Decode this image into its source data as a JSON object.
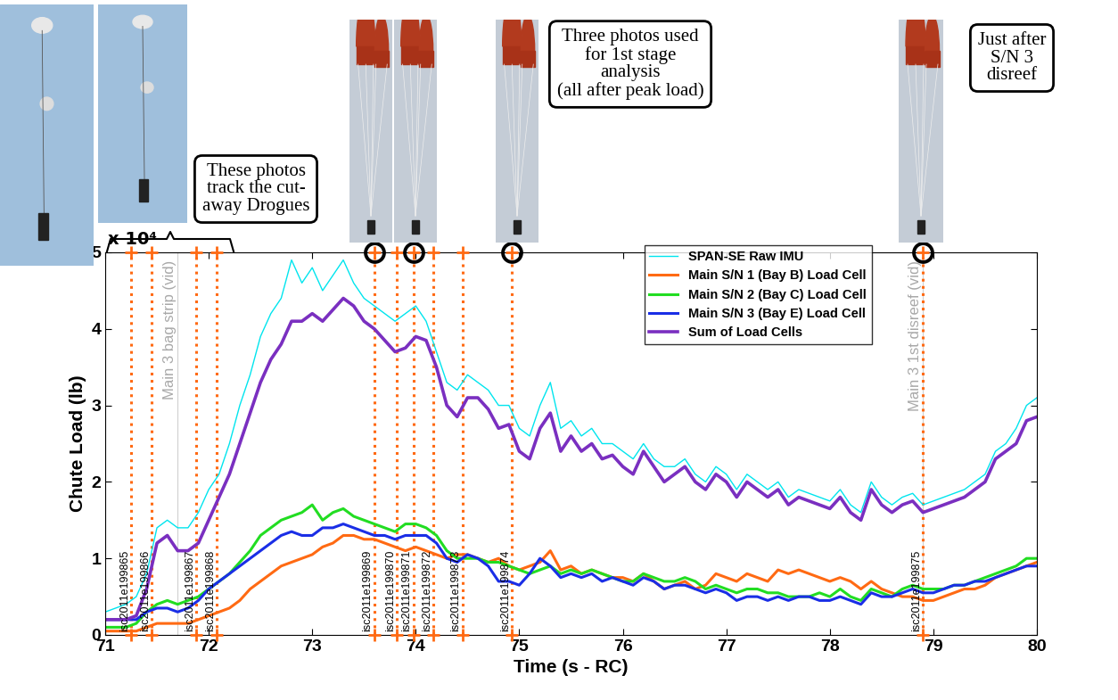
{
  "chart_data": {
    "type": "line",
    "x_label": "Time (s - RC)",
    "y_label": "Chute Load (lb)",
    "y_multiplier": "x 10⁴",
    "xlim": [
      71,
      80
    ],
    "xticks": [
      71,
      72,
      73,
      74,
      75,
      76,
      77,
      78,
      79,
      80
    ],
    "ylim": [
      0,
      5
    ],
    "yticks": [
      0,
      1,
      2,
      3,
      4,
      5
    ],
    "legend": "upper right",
    "x": [
      71.0,
      71.1,
      71.2,
      71.3,
      71.4,
      71.5,
      71.6,
      71.7,
      71.8,
      71.9,
      72.0,
      72.1,
      72.2,
      72.3,
      72.4,
      72.5,
      72.6,
      72.7,
      72.8,
      72.9,
      73.0,
      73.1,
      73.2,
      73.3,
      73.4,
      73.5,
      73.6,
      73.7,
      73.8,
      73.9,
      74.0,
      74.1,
      74.2,
      74.3,
      74.4,
      74.5,
      74.6,
      74.7,
      74.8,
      74.9,
      75.0,
      75.1,
      75.2,
      75.3,
      75.4,
      75.5,
      75.6,
      75.7,
      75.8,
      75.9,
      76.0,
      76.1,
      76.2,
      76.3,
      76.4,
      76.5,
      76.6,
      76.7,
      76.8,
      76.9,
      77.0,
      77.1,
      77.2,
      77.3,
      77.4,
      77.5,
      77.6,
      77.7,
      77.8,
      77.9,
      78.0,
      78.1,
      78.2,
      78.3,
      78.4,
      78.5,
      78.6,
      78.7,
      78.8,
      78.9,
      79.0,
      79.1,
      79.2,
      79.3,
      79.4,
      79.5,
      79.6,
      79.7,
      79.8,
      79.9,
      80.0
    ],
    "series": [
      {
        "name": "SPAN-SE Raw IMU",
        "color": "#00e5ee",
        "values": [
          0.3,
          0.35,
          0.4,
          0.5,
          0.8,
          1.4,
          1.5,
          1.4,
          1.4,
          1.6,
          1.9,
          2.1,
          2.5,
          3.0,
          3.4,
          3.9,
          4.2,
          4.4,
          4.9,
          4.6,
          4.8,
          4.5,
          4.7,
          4.9,
          4.6,
          4.4,
          4.3,
          4.2,
          4.1,
          4.2,
          4.3,
          4.1,
          3.7,
          3.3,
          3.2,
          3.4,
          3.3,
          3.2,
          3.0,
          3.0,
          2.7,
          2.6,
          3.0,
          3.3,
          2.7,
          2.8,
          2.6,
          2.7,
          2.5,
          2.5,
          2.4,
          2.3,
          2.5,
          2.3,
          2.2,
          2.2,
          2.3,
          2.1,
          2.0,
          2.2,
          2.1,
          1.9,
          2.1,
          2.0,
          1.9,
          2.0,
          1.8,
          1.9,
          1.85,
          1.8,
          1.75,
          1.9,
          1.7,
          1.6,
          2.0,
          1.8,
          1.7,
          1.8,
          1.85,
          1.7,
          1.75,
          1.8,
          1.85,
          1.9,
          2.0,
          2.1,
          2.4,
          2.5,
          2.7,
          3.0,
          3.1
        ]
      },
      {
        "name": "Main S/N 1 (Bay B) Load Cell",
        "color": "#ff6a13",
        "values": [
          0.05,
          0.05,
          0.05,
          0.05,
          0.1,
          0.15,
          0.15,
          0.15,
          0.15,
          0.2,
          0.25,
          0.3,
          0.35,
          0.45,
          0.6,
          0.7,
          0.8,
          0.9,
          0.95,
          1.0,
          1.05,
          1.15,
          1.2,
          1.3,
          1.3,
          1.25,
          1.25,
          1.2,
          1.15,
          1.1,
          1.15,
          1.1,
          1.05,
          1.0,
          1.05,
          1.05,
          1.0,
          0.95,
          1.0,
          0.9,
          0.85,
          0.9,
          0.95,
          1.1,
          0.85,
          0.9,
          0.8,
          0.85,
          0.8,
          0.75,
          0.75,
          0.7,
          0.8,
          0.7,
          0.6,
          0.65,
          0.7,
          0.6,
          0.65,
          0.8,
          0.75,
          0.7,
          0.8,
          0.75,
          0.7,
          0.85,
          0.8,
          0.85,
          0.8,
          0.75,
          0.7,
          0.75,
          0.7,
          0.6,
          0.7,
          0.6,
          0.55,
          0.5,
          0.5,
          0.45,
          0.45,
          0.5,
          0.55,
          0.6,
          0.6,
          0.65,
          0.75,
          0.8,
          0.85,
          0.9,
          0.95
        ]
      },
      {
        "name": "Main S/N 2 (Bay C) Load Cell",
        "color": "#22dd22",
        "values": [
          0.1,
          0.1,
          0.1,
          0.15,
          0.3,
          0.4,
          0.45,
          0.4,
          0.45,
          0.5,
          0.6,
          0.7,
          0.8,
          0.95,
          1.1,
          1.3,
          1.4,
          1.5,
          1.55,
          1.6,
          1.7,
          1.5,
          1.6,
          1.65,
          1.55,
          1.5,
          1.45,
          1.4,
          1.35,
          1.45,
          1.45,
          1.4,
          1.3,
          1.1,
          1.0,
          1.0,
          1.0,
          0.95,
          0.95,
          0.9,
          0.85,
          0.8,
          0.85,
          0.9,
          0.8,
          0.85,
          0.8,
          0.85,
          0.8,
          0.75,
          0.7,
          0.7,
          0.8,
          0.75,
          0.7,
          0.7,
          0.75,
          0.7,
          0.6,
          0.65,
          0.6,
          0.55,
          0.6,
          0.6,
          0.55,
          0.55,
          0.5,
          0.5,
          0.5,
          0.55,
          0.5,
          0.6,
          0.5,
          0.45,
          0.6,
          0.55,
          0.5,
          0.6,
          0.65,
          0.6,
          0.6,
          0.6,
          0.65,
          0.65,
          0.7,
          0.75,
          0.8,
          0.85,
          0.9,
          1.0,
          1.0
        ]
      },
      {
        "name": "Main S/N 3 (Bay E) Load Cell",
        "color": "#1a2ee6",
        "values": [
          0.2,
          0.2,
          0.2,
          0.2,
          0.3,
          0.35,
          0.35,
          0.3,
          0.35,
          0.45,
          0.6,
          0.7,
          0.8,
          0.9,
          1.0,
          1.1,
          1.2,
          1.3,
          1.35,
          1.3,
          1.3,
          1.4,
          1.4,
          1.45,
          1.4,
          1.35,
          1.3,
          1.3,
          1.25,
          1.3,
          1.3,
          1.3,
          1.2,
          1.0,
          0.95,
          1.05,
          1.0,
          0.9,
          0.7,
          0.7,
          0.65,
          0.8,
          1.0,
          0.9,
          0.75,
          0.8,
          0.75,
          0.8,
          0.7,
          0.75,
          0.7,
          0.65,
          0.75,
          0.7,
          0.6,
          0.65,
          0.65,
          0.6,
          0.55,
          0.6,
          0.55,
          0.45,
          0.5,
          0.5,
          0.45,
          0.5,
          0.45,
          0.5,
          0.5,
          0.45,
          0.45,
          0.5,
          0.45,
          0.4,
          0.55,
          0.5,
          0.5,
          0.55,
          0.6,
          0.55,
          0.55,
          0.6,
          0.65,
          0.65,
          0.7,
          0.7,
          0.75,
          0.8,
          0.85,
          0.9,
          0.9
        ]
      },
      {
        "name": "Sum of Load Cells",
        "color": "#7a2fc0",
        "values": [
          0.2,
          0.2,
          0.2,
          0.25,
          0.6,
          1.2,
          1.3,
          1.1,
          1.1,
          1.2,
          1.5,
          1.8,
          2.1,
          2.5,
          2.9,
          3.3,
          3.6,
          3.8,
          4.1,
          4.1,
          4.2,
          4.1,
          4.25,
          4.4,
          4.3,
          4.1,
          4.0,
          3.85,
          3.7,
          3.75,
          3.9,
          3.85,
          3.5,
          3.0,
          2.85,
          3.1,
          3.1,
          2.95,
          2.7,
          2.75,
          2.4,
          2.3,
          2.7,
          2.9,
          2.4,
          2.6,
          2.4,
          2.5,
          2.3,
          2.35,
          2.2,
          2.1,
          2.4,
          2.2,
          2.0,
          2.1,
          2.2,
          2.0,
          1.9,
          2.1,
          2.0,
          1.8,
          2.0,
          1.9,
          1.8,
          1.9,
          1.7,
          1.8,
          1.75,
          1.7,
          1.65,
          1.8,
          1.6,
          1.5,
          1.9,
          1.7,
          1.6,
          1.7,
          1.75,
          1.6,
          1.65,
          1.7,
          1.75,
          1.8,
          1.9,
          2.0,
          2.3,
          2.4,
          2.5,
          2.8,
          2.85
        ]
      }
    ],
    "events": [
      {
        "x": 71.25,
        "label": "isc2011e199865"
      },
      {
        "x": 71.45,
        "label": "isc2011e199866"
      },
      {
        "x": 71.88,
        "label": "isc2011e199867"
      },
      {
        "x": 72.08,
        "label": "isc2011e199868"
      },
      {
        "x": 73.6,
        "label": "isc2011e199869"
      },
      {
        "x": 73.82,
        "label": "isc2011e199870"
      },
      {
        "x": 73.98,
        "label": "isc2011e199871"
      },
      {
        "x": 74.17,
        "label": "isc2011e199872"
      },
      {
        "x": 74.45,
        "label": "isc2011e199873"
      },
      {
        "x": 74.93,
        "label": "isc2011e199874"
      },
      {
        "x": 78.9,
        "label": "isc2011e199875"
      }
    ],
    "video_events": [
      {
        "x": 71.7,
        "label": "Main 3 bag strip (vid)"
      },
      {
        "x": 78.9,
        "label": "Main 3 1st disreef (vid)"
      }
    ],
    "photo_marks": [
      73.6,
      73.98,
      74.93,
      78.9
    ],
    "callouts": [
      "These photos\ntrack the cut-\naway Drogues",
      "Three photos used\nfor 1st stage\nanalysis\n(all after peak load)",
      "Just after\nS/N 3\ndisreef"
    ]
  }
}
